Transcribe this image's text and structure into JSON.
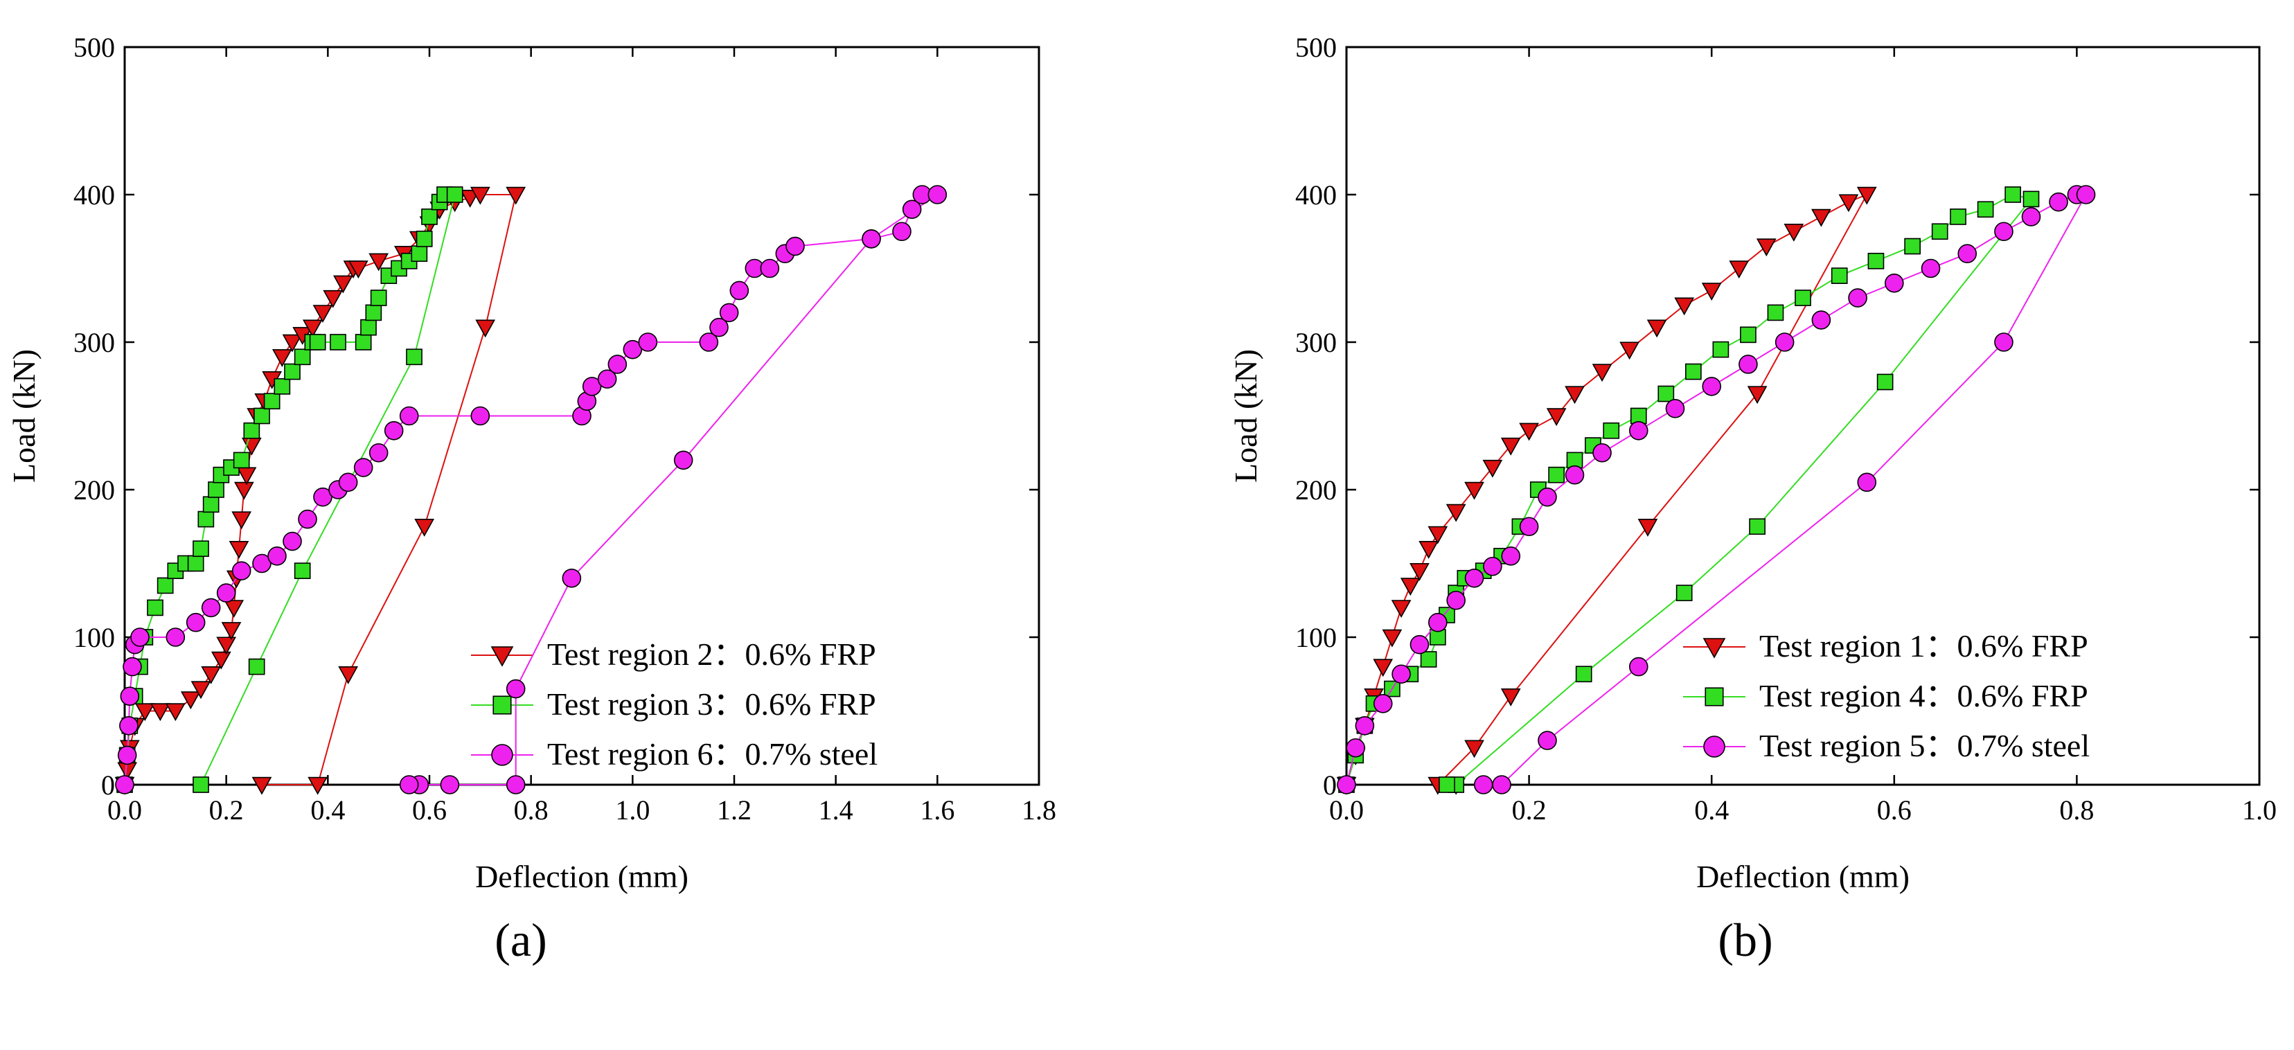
{
  "figure": {
    "panel_labels": [
      "(a)",
      "(b)"
    ]
  },
  "chart_data": [
    {
      "type": "line",
      "panel": "(a)",
      "title": "",
      "xlabel": "Deflection (mm)",
      "ylabel": "Load (kN)",
      "xlim": [
        0,
        1.8
      ],
      "ylim": [
        0,
        500
      ],
      "xticks": [
        0,
        0.2,
        0.4,
        0.6,
        0.8,
        1.0,
        1.2,
        1.4,
        1.6,
        1.8
      ],
      "xtick_labels": [
        "0.0",
        "0.2",
        "0.4",
        "0.6",
        "0.8",
        "1.0",
        "1.2",
        "1.4",
        "1.6",
        "1.8"
      ],
      "yticks": [
        0,
        100,
        200,
        300,
        400,
        500
      ],
      "ytick_labels": [
        "0",
        "100",
        "200",
        "300",
        "400",
        "500"
      ],
      "legend_position": "bottom-right",
      "series": [
        {
          "name": "Test region 2：0.6% FRP",
          "color": "#dd1111",
          "marker": "triangle-down",
          "points": [
            [
              0,
              0
            ],
            [
              0.005,
              10
            ],
            [
              0.01,
              25
            ],
            [
              0.02,
              40
            ],
            [
              0.04,
              50
            ],
            [
              0.07,
              50
            ],
            [
              0.1,
              50
            ],
            [
              0.13,
              58
            ],
            [
              0.15,
              65
            ],
            [
              0.17,
              75
            ],
            [
              0.19,
              85
            ],
            [
              0.2,
              95
            ],
            [
              0.21,
              105
            ],
            [
              0.215,
              120
            ],
            [
              0.22,
              140
            ],
            [
              0.225,
              160
            ],
            [
              0.23,
              180
            ],
            [
              0.235,
              200
            ],
            [
              0.24,
              210
            ],
            [
              0.25,
              230
            ],
            [
              0.26,
              250
            ],
            [
              0.275,
              260
            ],
            [
              0.29,
              275
            ],
            [
              0.31,
              290
            ],
            [
              0.33,
              300
            ],
            [
              0.35,
              305
            ],
            [
              0.37,
              310
            ],
            [
              0.39,
              320
            ],
            [
              0.41,
              330
            ],
            [
              0.43,
              340
            ],
            [
              0.45,
              350
            ],
            [
              0.46,
              350
            ],
            [
              0.5,
              355
            ],
            [
              0.55,
              360
            ],
            [
              0.58,
              370
            ],
            [
              0.6,
              380
            ],
            [
              0.62,
              390
            ],
            [
              0.65,
              395
            ],
            [
              0.68,
              398
            ],
            [
              0.7,
              400
            ],
            [
              0.77,
              400
            ],
            [
              0.71,
              310
            ],
            [
              0.59,
              175
            ],
            [
              0.44,
              75
            ],
            [
              0.38,
              0
            ],
            [
              0.27,
              0
            ]
          ]
        },
        {
          "name": "Test region 3：0.6% FRP",
          "color": "#33dd22",
          "marker": "square",
          "points": [
            [
              0,
              0
            ],
            [
              0.005,
              20
            ],
            [
              0.01,
              40
            ],
            [
              0.02,
              60
            ],
            [
              0.03,
              80
            ],
            [
              0.04,
              100
            ],
            [
              0.06,
              120
            ],
            [
              0.08,
              135
            ],
            [
              0.1,
              145
            ],
            [
              0.12,
              150
            ],
            [
              0.14,
              150
            ],
            [
              0.15,
              160
            ],
            [
              0.16,
              180
            ],
            [
              0.17,
              190
            ],
            [
              0.18,
              200
            ],
            [
              0.19,
              210
            ],
            [
              0.21,
              215
            ],
            [
              0.23,
              220
            ],
            [
              0.25,
              240
            ],
            [
              0.27,
              250
            ],
            [
              0.29,
              260
            ],
            [
              0.31,
              270
            ],
            [
              0.33,
              280
            ],
            [
              0.35,
              290
            ],
            [
              0.37,
              300
            ],
            [
              0.38,
              300
            ],
            [
              0.42,
              300
            ],
            [
              0.47,
              300
            ],
            [
              0.48,
              310
            ],
            [
              0.49,
              320
            ],
            [
              0.5,
              330
            ],
            [
              0.52,
              345
            ],
            [
              0.54,
              350
            ],
            [
              0.56,
              355
            ],
            [
              0.58,
              360
            ],
            [
              0.59,
              370
            ],
            [
              0.6,
              385
            ],
            [
              0.62,
              395
            ],
            [
              0.63,
              400
            ],
            [
              0.65,
              400
            ],
            [
              0.57,
              290
            ],
            [
              0.35,
              145
            ],
            [
              0.26,
              80
            ],
            [
              0.15,
              0
            ]
          ]
        },
        {
          "name": "Test region 6：0.7% steel",
          "color": "#ee22ee",
          "marker": "circle",
          "points": [
            [
              0,
              0
            ],
            [
              0.005,
              20
            ],
            [
              0.008,
              40
            ],
            [
              0.01,
              60
            ],
            [
              0.015,
              80
            ],
            [
              0.02,
              95
            ],
            [
              0.03,
              100
            ],
            [
              0.1,
              100
            ],
            [
              0.14,
              110
            ],
            [
              0.17,
              120
            ],
            [
              0.2,
              130
            ],
            [
              0.23,
              145
            ],
            [
              0.27,
              150
            ],
            [
              0.3,
              155
            ],
            [
              0.33,
              165
            ],
            [
              0.36,
              180
            ],
            [
              0.39,
              195
            ],
            [
              0.42,
              200
            ],
            [
              0.44,
              205
            ],
            [
              0.47,
              215
            ],
            [
              0.5,
              225
            ],
            [
              0.53,
              240
            ],
            [
              0.56,
              250
            ],
            [
              0.7,
              250
            ],
            [
              0.9,
              250
            ],
            [
              0.91,
              260
            ],
            [
              0.92,
              270
            ],
            [
              0.95,
              275
            ],
            [
              0.97,
              285
            ],
            [
              1.0,
              295
            ],
            [
              1.03,
              300
            ],
            [
              1.15,
              300
            ],
            [
              1.17,
              310
            ],
            [
              1.19,
              320
            ],
            [
              1.21,
              335
            ],
            [
              1.24,
              350
            ],
            [
              1.27,
              350
            ],
            [
              1.3,
              360
            ],
            [
              1.32,
              365
            ],
            [
              1.47,
              370
            ],
            [
              1.53,
              375
            ],
            [
              1.55,
              390
            ],
            [
              1.57,
              400
            ],
            [
              1.6,
              400
            ],
            [
              1.47,
              370
            ],
            [
              1.1,
              220
            ],
            [
              0.88,
              140
            ],
            [
              0.77,
              65
            ],
            [
              0.77,
              0
            ],
            [
              0.64,
              0
            ],
            [
              0.58,
              0
            ],
            [
              0.56,
              0
            ]
          ]
        }
      ]
    },
    {
      "type": "line",
      "panel": "(b)",
      "title": "",
      "xlabel": "Deflection (mm)",
      "ylabel": "Load (kN)",
      "xlim": [
        0,
        1.0
      ],
      "ylim": [
        0,
        500
      ],
      "xticks": [
        0,
        0.2,
        0.4,
        0.6,
        0.8,
        1.0
      ],
      "xtick_labels": [
        "0.0",
        "0.2",
        "0.4",
        "0.6",
        "0.8",
        "1.0"
      ],
      "yticks": [
        0,
        100,
        200,
        300,
        400,
        500
      ],
      "ytick_labels": [
        "0",
        "100",
        "200",
        "300",
        "400",
        "500"
      ],
      "legend_position": "bottom-right",
      "series": [
        {
          "name": "Test region 1：0.6% FRP",
          "color": "#dd1111",
          "marker": "triangle-down",
          "points": [
            [
              0,
              0
            ],
            [
              0.01,
              20
            ],
            [
              0.02,
              40
            ],
            [
              0.03,
              60
            ],
            [
              0.04,
              80
            ],
            [
              0.05,
              100
            ],
            [
              0.06,
              120
            ],
            [
              0.07,
              135
            ],
            [
              0.08,
              145
            ],
            [
              0.09,
              160
            ],
            [
              0.1,
              170
            ],
            [
              0.12,
              185
            ],
            [
              0.14,
              200
            ],
            [
              0.16,
              215
            ],
            [
              0.18,
              230
            ],
            [
              0.2,
              240
            ],
            [
              0.23,
              250
            ],
            [
              0.25,
              265
            ],
            [
              0.28,
              280
            ],
            [
              0.31,
              295
            ],
            [
              0.34,
              310
            ],
            [
              0.37,
              325
            ],
            [
              0.4,
              335
            ],
            [
              0.43,
              350
            ],
            [
              0.46,
              365
            ],
            [
              0.49,
              375
            ],
            [
              0.52,
              385
            ],
            [
              0.55,
              395
            ],
            [
              0.57,
              400
            ],
            [
              0.45,
              265
            ],
            [
              0.33,
              175
            ],
            [
              0.18,
              60
            ],
            [
              0.14,
              25
            ],
            [
              0.1,
              0
            ],
            [
              0.12,
              0
            ]
          ]
        },
        {
          "name": "Test region 4：0.6% FRP",
          "color": "#33dd22",
          "marker": "square",
          "points": [
            [
              0,
              0
            ],
            [
              0.01,
              20
            ],
            [
              0.02,
              40
            ],
            [
              0.03,
              55
            ],
            [
              0.05,
              65
            ],
            [
              0.07,
              75
            ],
            [
              0.09,
              85
            ],
            [
              0.1,
              100
            ],
            [
              0.11,
              115
            ],
            [
              0.12,
              130
            ],
            [
              0.13,
              140
            ],
            [
              0.15,
              145
            ],
            [
              0.17,
              155
            ],
            [
              0.19,
              175
            ],
            [
              0.21,
              200
            ],
            [
              0.23,
              210
            ],
            [
              0.25,
              220
            ],
            [
              0.27,
              230
            ],
            [
              0.29,
              240
            ],
            [
              0.32,
              250
            ],
            [
              0.35,
              265
            ],
            [
              0.38,
              280
            ],
            [
              0.41,
              295
            ],
            [
              0.44,
              305
            ],
            [
              0.47,
              320
            ],
            [
              0.5,
              330
            ],
            [
              0.54,
              345
            ],
            [
              0.58,
              355
            ],
            [
              0.62,
              365
            ],
            [
              0.65,
              375
            ],
            [
              0.67,
              385
            ],
            [
              0.7,
              390
            ],
            [
              0.73,
              400
            ],
            [
              0.75,
              397
            ],
            [
              0.59,
              273
            ],
            [
              0.45,
              175
            ],
            [
              0.37,
              130
            ],
            [
              0.26,
              75
            ],
            [
              0.12,
              0
            ],
            [
              0.11,
              0
            ]
          ]
        },
        {
          "name": "Test region 5：0.7% steel",
          "color": "#ee22ee",
          "marker": "circle",
          "points": [
            [
              0,
              0
            ],
            [
              0.01,
              25
            ],
            [
              0.02,
              40
            ],
            [
              0.04,
              55
            ],
            [
              0.06,
              75
            ],
            [
              0.08,
              95
            ],
            [
              0.1,
              110
            ],
            [
              0.12,
              125
            ],
            [
              0.14,
              140
            ],
            [
              0.16,
              148
            ],
            [
              0.18,
              155
            ],
            [
              0.2,
              175
            ],
            [
              0.22,
              195
            ],
            [
              0.25,
              210
            ],
            [
              0.28,
              225
            ],
            [
              0.32,
              240
            ],
            [
              0.36,
              255
            ],
            [
              0.4,
              270
            ],
            [
              0.44,
              285
            ],
            [
              0.48,
              300
            ],
            [
              0.52,
              315
            ],
            [
              0.56,
              330
            ],
            [
              0.6,
              340
            ],
            [
              0.64,
              350
            ],
            [
              0.68,
              360
            ],
            [
              0.72,
              375
            ],
            [
              0.75,
              385
            ],
            [
              0.78,
              395
            ],
            [
              0.8,
              400
            ],
            [
              0.81,
              400
            ],
            [
              0.72,
              300
            ],
            [
              0.57,
              205
            ],
            [
              0.32,
              80
            ],
            [
              0.22,
              30
            ],
            [
              0.17,
              0
            ],
            [
              0.15,
              0
            ]
          ]
        }
      ]
    }
  ]
}
